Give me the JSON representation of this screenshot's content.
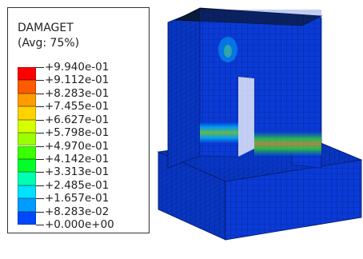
{
  "legend": {
    "title": "DAMAGET",
    "subtitle": "(Avg: 75%)",
    "ticks": [
      {
        "label": "+9.940e-01"
      },
      {
        "label": "+9.112e-01"
      },
      {
        "label": "+8.283e-01"
      },
      {
        "label": "+7.455e-01"
      },
      {
        "label": "+6.627e-01"
      },
      {
        "label": "+5.798e-01"
      },
      {
        "label": "+4.970e-01"
      },
      {
        "label": "+4.142e-01"
      },
      {
        "label": "+3.313e-01"
      },
      {
        "label": "+2.485e-01"
      },
      {
        "label": "+1.657e-01"
      },
      {
        "label": "+8.283e-02"
      },
      {
        "label": "+0.000e+00"
      }
    ],
    "colors": [
      "#ff0000",
      "#ff5a00",
      "#ff9c00",
      "#ffd200",
      "#d6ff00",
      "#9cff00",
      "#3cff00",
      "#00ff2a",
      "#00ffb0",
      "#00e2ff",
      "#009cff",
      "#0048ff"
    ]
  },
  "model_colors": {
    "base": "#0a3bd8",
    "mesh": "#061e70",
    "top": "#0a1a3a",
    "damage_low": "#00d8ff",
    "damage_mid": "#7cff3c",
    "damage_high": "#ffb400"
  }
}
